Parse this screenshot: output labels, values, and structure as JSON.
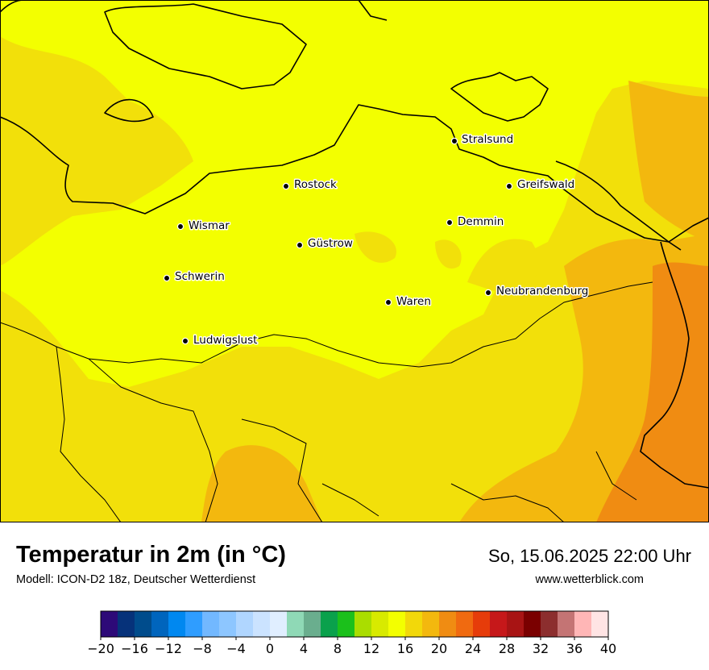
{
  "map": {
    "cities": [
      {
        "name": "Stralsund"
      },
      {
        "name": "Rostock"
      },
      {
        "name": "Greifswald"
      },
      {
        "name": "Wismar"
      },
      {
        "name": "Demmin"
      },
      {
        "name": "Güstrow"
      },
      {
        "name": "Schwerin"
      },
      {
        "name": "Neubrandenburg"
      },
      {
        "name": "Waren"
      },
      {
        "name": "Ludwigslust"
      }
    ]
  },
  "header": {
    "title": "Temperatur in 2m (in °C)",
    "model": "Modell: ICON-D2 18z, Deutscher Wetterdienst",
    "datetime": "So, 15.06.2025 22:00 Uhr",
    "website": "www.wetterblick.com"
  },
  "legend": {
    "ticks": [
      "−20",
      "−16",
      "−12",
      "−8",
      "−4",
      "0",
      "4",
      "8",
      "12",
      "16",
      "20",
      "24",
      "28",
      "32",
      "36",
      "40"
    ],
    "colors": [
      "#2d0a78",
      "#06327a",
      "#004c8c",
      "#0065bd",
      "#0088f0",
      "#2f9dff",
      "#72b8ff",
      "#8dc6ff",
      "#b0d6ff",
      "#cbe3ff",
      "#e0eeff",
      "#8fd9b6",
      "#6aae8e",
      "#0aa14c",
      "#1bc01b",
      "#aadd00",
      "#d8ea00",
      "#f3ff00",
      "#f2d80a",
      "#f3b80e",
      "#f08c12",
      "#f06a10",
      "#e63c0a",
      "#c6181a",
      "#a81414",
      "#7a0000",
      "#8c2e2e",
      "#c47474",
      "#ffb6b6",
      "#ffe4e4"
    ],
    "min": -20,
    "max": 40
  }
}
